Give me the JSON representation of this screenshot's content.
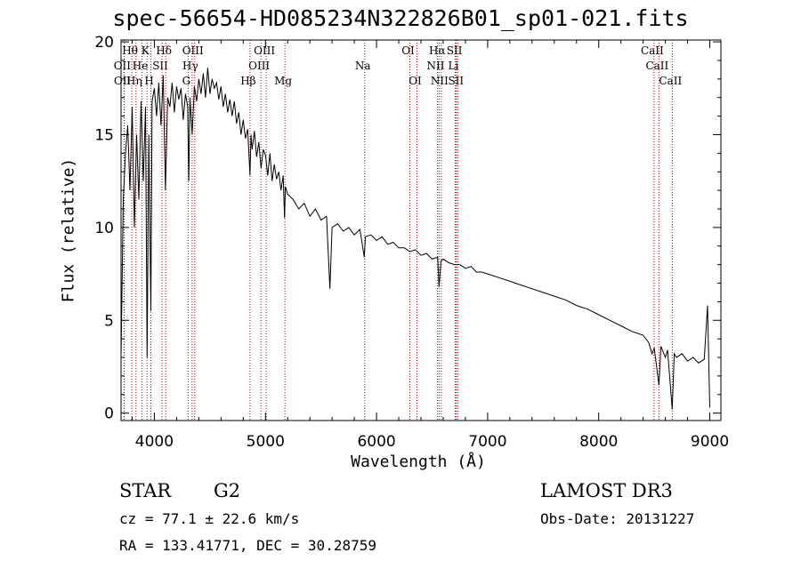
{
  "chart_data": {
    "type": "line",
    "title": "spec-56654-HD085234N322826B01_sp01-021.fits",
    "xlabel": "Wavelength (Å)",
    "ylabel": "Flux (relative)",
    "xlim": [
      3700,
      9100
    ],
    "ylim": [
      -0.4,
      20.1
    ],
    "xticks": [
      4000,
      5000,
      6000,
      7000,
      8000,
      9000
    ],
    "yticks": [
      0,
      5,
      10,
      15,
      20
    ],
    "grid": false,
    "series": [
      {
        "name": "Flux",
        "x": [
          3700,
          3720,
          3740,
          3760,
          3780,
          3800,
          3820,
          3840,
          3860,
          3880,
          3900,
          3920,
          3935,
          3950,
          3968,
          3980,
          4000,
          4020,
          4040,
          4060,
          4080,
          4100,
          4120,
          4140,
          4160,
          4180,
          4200,
          4220,
          4240,
          4260,
          4280,
          4300,
          4310,
          4320,
          4340,
          4360,
          4380,
          4400,
          4420,
          4440,
          4460,
          4480,
          4500,
          4520,
          4540,
          4560,
          4580,
          4600,
          4620,
          4640,
          4660,
          4680,
          4700,
          4720,
          4740,
          4760,
          4780,
          4800,
          4820,
          4840,
          4861,
          4870,
          4880,
          4900,
          4920,
          4940,
          4960,
          4980,
          5000,
          5020,
          5040,
          5060,
          5080,
          5100,
          5120,
          5140,
          5160,
          5172,
          5180,
          5200,
          5250,
          5300,
          5350,
          5400,
          5450,
          5500,
          5550,
          5580,
          5600,
          5650,
          5700,
          5750,
          5800,
          5850,
          5890,
          5900,
          5950,
          6000,
          6050,
          6100,
          6150,
          6200,
          6250,
          6300,
          6350,
          6400,
          6450,
          6500,
          6550,
          6563,
          6580,
          6600,
          6650,
          6700,
          6750,
          6800,
          6850,
          6900,
          6950,
          7000,
          7100,
          7200,
          7300,
          7400,
          7500,
          7600,
          7700,
          7800,
          7900,
          8000,
          8100,
          8200,
          8300,
          8400,
          8450,
          8480,
          8500,
          8542,
          8560,
          8600,
          8620,
          8662,
          8680,
          8700,
          8750,
          8800,
          8850,
          8900,
          8950,
          8980,
          9000
        ],
        "y": [
          3.0,
          11.5,
          14.0,
          15.5,
          12.0,
          16.5,
          10.0,
          15.0,
          11.5,
          16.8,
          12.5,
          16.5,
          3.0,
          15.0,
          5.5,
          16.8,
          17.5,
          16.0,
          17.8,
          15.5,
          18.2,
          12.0,
          17.0,
          16.5,
          17.8,
          16.2,
          17.6,
          16.9,
          17.5,
          15.8,
          17.2,
          16.5,
          12.5,
          17.0,
          15.0,
          17.6,
          16.8,
          18.0,
          17.2,
          18.3,
          17.0,
          18.6,
          17.2,
          18.0,
          17.5,
          17.8,
          16.9,
          17.6,
          16.5,
          17.2,
          16.2,
          16.9,
          16.0,
          16.8,
          15.6,
          16.2,
          15.0,
          15.8,
          14.8,
          15.3,
          12.8,
          15.0,
          14.2,
          15.2,
          13.8,
          14.6,
          13.2,
          14.2,
          13.9,
          12.8,
          14.0,
          12.5,
          13.4,
          12.6,
          13.0,
          12.0,
          12.8,
          10.5,
          12.2,
          11.8,
          11.5,
          11.0,
          11.3,
          10.6,
          11.0,
          10.4,
          10.6,
          6.7,
          10.0,
          10.2,
          9.8,
          10.0,
          9.6,
          9.9,
          8.4,
          9.5,
          9.6,
          9.3,
          9.5,
          9.1,
          9.2,
          8.9,
          8.9,
          8.7,
          8.8,
          8.5,
          8.6,
          8.3,
          8.4,
          6.8,
          8.2,
          8.3,
          8.1,
          8.0,
          8.0,
          7.8,
          7.9,
          7.6,
          7.6,
          7.5,
          7.3,
          7.1,
          6.9,
          6.7,
          6.5,
          6.3,
          6.1,
          5.8,
          5.6,
          5.3,
          5.0,
          4.7,
          4.4,
          4.2,
          3.8,
          3.2,
          3.5,
          1.5,
          3.6,
          3.0,
          3.4,
          0.2,
          3.2,
          3.0,
          3.2,
          2.8,
          3.0,
          2.7,
          2.9,
          5.8,
          0.3
        ]
      }
    ],
    "lines": [
      {
        "name": "Hθ",
        "wl": 3797,
        "row": 1
      },
      {
        "name": "OII",
        "wl": 3727,
        "row": 2
      },
      {
        "name": "OII",
        "wl": 3729,
        "row": 3
      },
      {
        "name": "Hη",
        "wl": 3835,
        "row": 3
      },
      {
        "name": "K",
        "wl": 3934,
        "row": 1
      },
      {
        "name": "He",
        "wl": 3889,
        "row": 2
      },
      {
        "name": "H",
        "wl": 3969,
        "row": 3
      },
      {
        "name": "SII",
        "wl": 4069,
        "row": 2
      },
      {
        "name": "Hδ",
        "wl": 4102,
        "row": 1
      },
      {
        "name": "OIII",
        "wl": 4363,
        "row": 1
      },
      {
        "name": "Hγ",
        "wl": 4340,
        "row": 2
      },
      {
        "name": "G",
        "wl": 4304,
        "row": 3
      },
      {
        "name": "Hβ",
        "wl": 4861,
        "row": 3
      },
      {
        "name": "OIII",
        "wl": 5007,
        "row": 1
      },
      {
        "name": "OIII",
        "wl": 4959,
        "row": 2
      },
      {
        "name": "Mg",
        "wl": 5175,
        "row": 3
      },
      {
        "name": "Na",
        "wl": 5893,
        "row": 2
      },
      {
        "name": "OI",
        "wl": 6300,
        "row": 1
      },
      {
        "name": "OI",
        "wl": 6364,
        "row": 3
      },
      {
        "name": "Hα",
        "wl": 6563,
        "row": 1
      },
      {
        "name": "NII",
        "wl": 6548,
        "row": 2
      },
      {
        "name": "NII",
        "wl": 6583,
        "row": 3
      },
      {
        "name": "SII",
        "wl": 6717,
        "row": 1
      },
      {
        "name": "Li",
        "wl": 6708,
        "row": 2
      },
      {
        "name": "SII",
        "wl": 6731,
        "row": 3
      },
      {
        "name": "CaII",
        "wl": 8498,
        "row": 1
      },
      {
        "name": "CaII",
        "wl": 8542,
        "row": 2
      },
      {
        "name": "CaII",
        "wl": 8662,
        "row": 3
      }
    ]
  },
  "info": {
    "object_class": "STAR",
    "subclass": "G2",
    "survey": "LAMOST DR3",
    "cz": "cz = 77.1 ± 22.6 km/s",
    "obs_date": "Obs-Date: 20131227",
    "coords": "RA = 133.41771, DEC =  30.28759"
  },
  "colors": {
    "spectrum": "#000000",
    "line_marker": "#c00000",
    "axes": "#000000"
  }
}
